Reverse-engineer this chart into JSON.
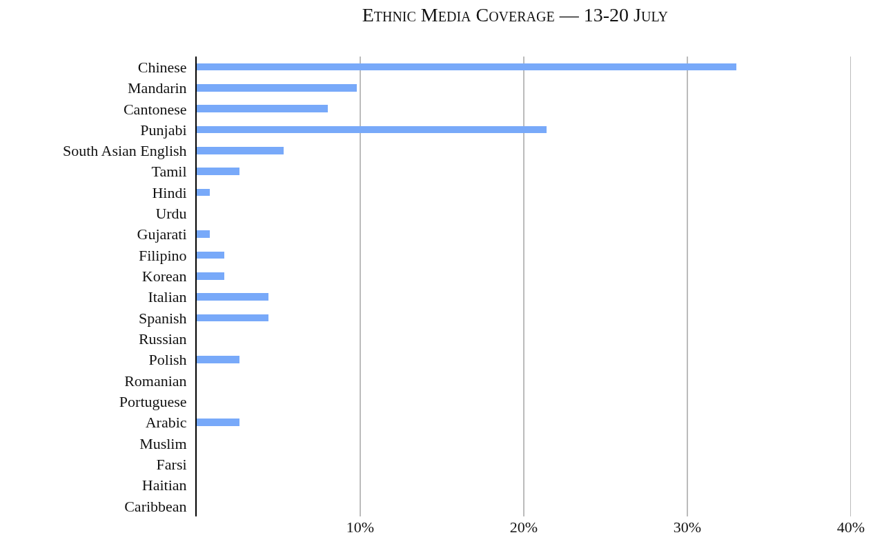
{
  "chart_data": {
    "type": "bar",
    "orientation": "horizontal",
    "title": "Ethnic Media Coverage — 13-20 July",
    "categories": [
      "Chinese",
      "Mandarin",
      "Cantonese",
      "Punjabi",
      "South Asian English",
      "Tamil",
      "Hindi",
      "Urdu",
      "Gujarati",
      "Filipino",
      "Korean",
      "Italian",
      "Spanish",
      "Russian",
      "Polish",
      "Romanian",
      "Portuguese",
      "Arabic",
      "Muslim",
      "Farsi",
      "Haitian",
      "Caribbean"
    ],
    "values": [
      33.0,
      9.8,
      8.0,
      21.4,
      5.3,
      2.6,
      0.8,
      0,
      0.8,
      1.7,
      1.7,
      4.4,
      4.4,
      0,
      2.6,
      0,
      0,
      2.6,
      0,
      0,
      0,
      0
    ],
    "color": "#78a9f9",
    "xlim": [
      0,
      40
    ],
    "xticks": [
      {
        "value": 10,
        "label": "10%"
      },
      {
        "value": 20,
        "label": "20%"
      },
      {
        "value": 30,
        "label": "30%"
      },
      {
        "value": 40,
        "label": "40%"
      }
    ],
    "grid": "x"
  }
}
